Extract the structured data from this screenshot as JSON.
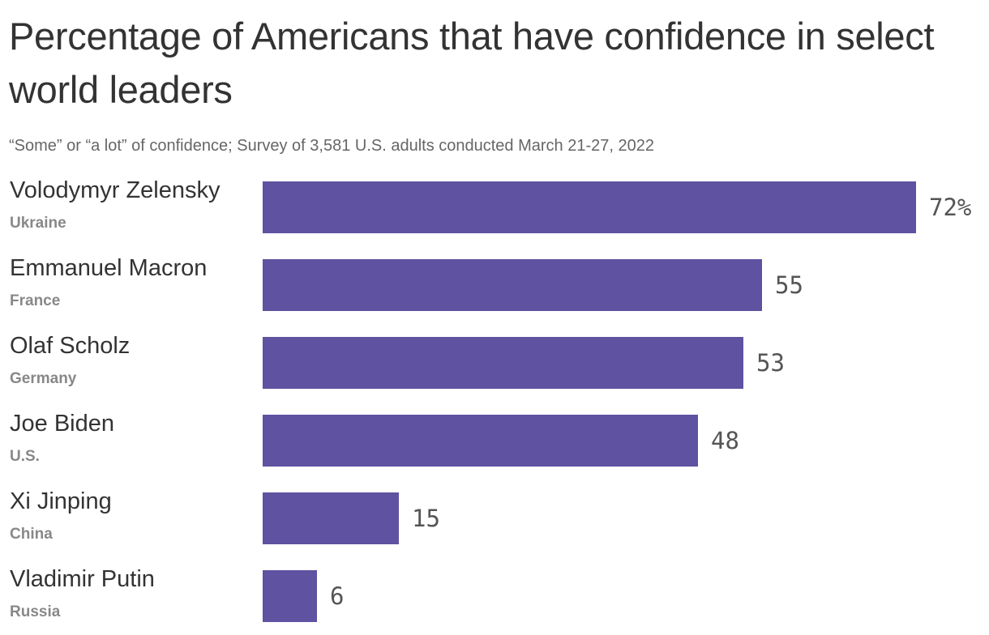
{
  "title": "Percentage of Americans that have confidence in select world leaders",
  "subtitle": "“Some” or “a lot” of confidence; Survey of 3,581 U.S. adults conducted March 21-27, 2022",
  "chart_data": {
    "type": "bar",
    "orientation": "horizontal",
    "title": "Percentage of Americans that have confidence in select world leaders",
    "subtitle": "“Some” or “a lot” of confidence; Survey of 3,581 U.S. adults conducted March 21-27, 2022",
    "categories": [
      "Volodymyr Zelensky",
      "Emmanuel Macron",
      "Olaf Scholz",
      "Joe Biden",
      "Xi Jinping",
      "Vladimir Putin"
    ],
    "subcategories": [
      "Ukraine",
      "France",
      "Germany",
      "U.S.",
      "China",
      "Russia"
    ],
    "values": [
      72,
      55,
      53,
      48,
      15,
      6
    ],
    "value_labels": [
      "72%",
      "55",
      "53",
      "48",
      "15",
      "6"
    ],
    "xlim": [
      0,
      100
    ],
    "grid": false,
    "legend": "none",
    "bar_color": "#5e52a1"
  }
}
